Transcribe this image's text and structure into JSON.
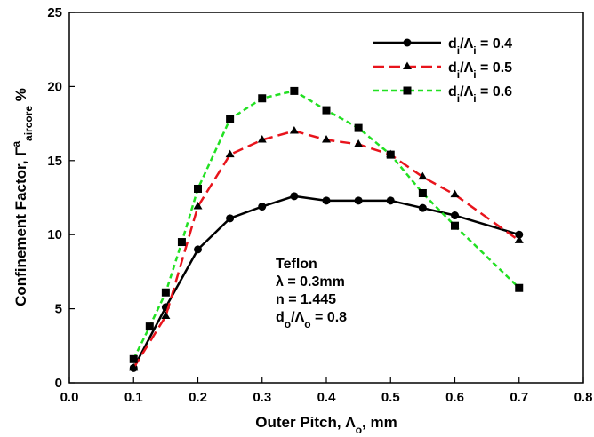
{
  "chart_data": {
    "type": "line",
    "xlabel": "Outer Pitch, Λ",
    "xlabel_sub": "o",
    "xlabel_tail": ", mm",
    "ylabel": "Confinement Factor, Γ",
    "ylabel_sup": "a",
    "ylabel_sub": "aircore",
    "ylabel_tail": " %",
    "xlim": [
      0.0,
      0.8
    ],
    "ylim": [
      0,
      25
    ],
    "xticks": [
      "0.0",
      "0.1",
      "0.2",
      "0.3",
      "0.4",
      "0.5",
      "0.6",
      "0.7",
      "0.8"
    ],
    "yticks": [
      "0",
      "5",
      "10",
      "15",
      "20",
      "25"
    ],
    "grid": false,
    "legend_position": "top-right",
    "series": [
      {
        "name": "d/Λ = 0.4",
        "name_parts": [
          "d",
          "i",
          "/Λ",
          "i",
          " = 0.4"
        ],
        "color": "#000000",
        "dash": "solid",
        "marker": "circle",
        "x": [
          0.1,
          0.15,
          0.2,
          0.25,
          0.3,
          0.35,
          0.4,
          0.45,
          0.5,
          0.55,
          0.6,
          0.7
        ],
        "y": [
          1.0,
          5.1,
          9.0,
          11.1,
          11.9,
          12.6,
          12.3,
          12.3,
          12.3,
          11.8,
          11.3,
          10.0
        ]
      },
      {
        "name": "d/Λ = 0.5",
        "name_parts": [
          "d",
          "i",
          "/Λ",
          "i",
          " = 0.5"
        ],
        "color": "#e8141c",
        "dash": "long",
        "marker": "triangle",
        "x": [
          0.1,
          0.15,
          0.2,
          0.25,
          0.3,
          0.35,
          0.4,
          0.45,
          0.5,
          0.55,
          0.6,
          0.7
        ],
        "y": [
          1.0,
          4.5,
          11.9,
          15.4,
          16.4,
          17.0,
          16.4,
          16.1,
          15.4,
          13.9,
          12.7,
          9.6
        ]
      },
      {
        "name": "d/Λ = 0.6",
        "name_parts": [
          "d",
          "i",
          "/Λ",
          "i",
          " = 0.6"
        ],
        "color": "#22e022",
        "dash": "short",
        "marker": "square",
        "x": [
          0.1,
          0.125,
          0.15,
          0.175,
          0.2,
          0.25,
          0.3,
          0.35,
          0.4,
          0.45,
          0.5,
          0.55,
          0.6,
          0.7
        ],
        "y": [
          1.6,
          3.8,
          6.1,
          9.5,
          13.1,
          17.8,
          19.2,
          19.7,
          18.4,
          17.2,
          15.4,
          12.8,
          10.6,
          6.4
        ]
      }
    ],
    "annotation": {
      "lines": [
        "Teflon",
        "λ = 0.3mm",
        "n = 1.445"
      ],
      "last_line_parts": [
        "d",
        "o",
        "/Λ",
        "o",
        " = 0.8"
      ]
    }
  }
}
